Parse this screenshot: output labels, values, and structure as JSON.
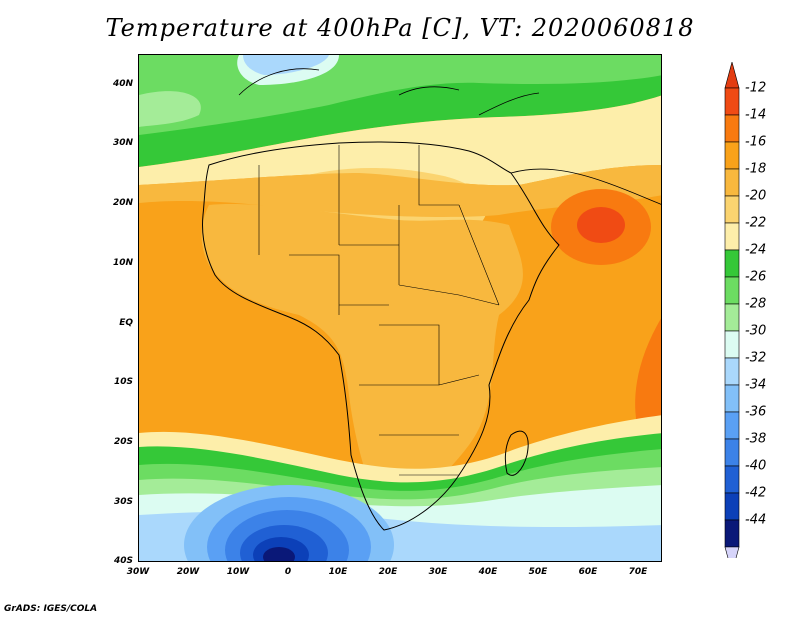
{
  "title": "Temperature at 400hPa [C], VT: 2020060818",
  "footer": "GrADS: IGES/COLA",
  "latitude_labels": [
    "40N",
    "30N",
    "20N",
    "10N",
    "EQ",
    "10S",
    "20S",
    "30S",
    "40S"
  ],
  "longitude_labels": [
    "30W",
    "20W",
    "10W",
    "0",
    "10E",
    "20E",
    "30E",
    "40E",
    "50E",
    "60E",
    "70E"
  ],
  "colorbar": {
    "labels": [
      "-12",
      "-14",
      "-16",
      "-18",
      "-20",
      "-22",
      "-24",
      "-26",
      "-28",
      "-30",
      "-32",
      "-34",
      "-36",
      "-38",
      "-40",
      "-42",
      "-44"
    ],
    "colors": [
      "#f04b14",
      "#f87a10",
      "#f9a21a",
      "#f8b83e",
      "#fbd470",
      "#fdeeaa",
      "#35c838",
      "#6cdc62",
      "#a4ec98",
      "#dcfcf2",
      "#aad8fc",
      "#82c0f8",
      "#5aa0f4",
      "#3c82e8",
      "#2060d4",
      "#0c40b8",
      "#0a1878"
    ],
    "top_color": "#e33d12",
    "bottom_color": "#d6d4fa"
  }
}
